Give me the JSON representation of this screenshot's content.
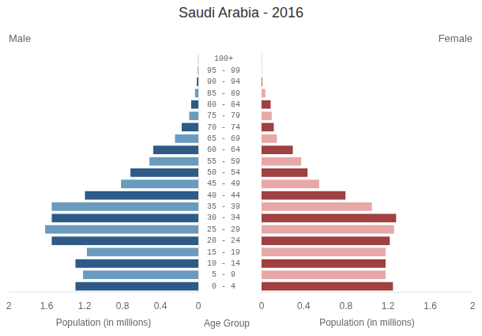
{
  "chart_data": {
    "type": "bar",
    "orientation": "horizontal",
    "title": "Saudi Arabia - 2016",
    "xlabel": "Population (in millions)",
    "ylabel": "Age Group",
    "categories": [
      "0 - 4",
      "5 - 9",
      "10 - 14",
      "15 - 19",
      "20 - 24",
      "25 - 29",
      "30 - 34",
      "35 - 39",
      "40 - 44",
      "45 - 49",
      "50 - 54",
      "55 - 59",
      "60 - 64",
      "65 - 69",
      "70 - 74",
      "75 - 79",
      "80 - 84",
      "85 - 89",
      "90 - 94",
      "95 - 99",
      "100+"
    ],
    "series": [
      {
        "name": "Male",
        "values": [
          1.3,
          1.22,
          1.3,
          1.18,
          1.55,
          1.62,
          1.55,
          1.55,
          1.2,
          0.82,
          0.72,
          0.52,
          0.48,
          0.25,
          0.18,
          0.1,
          0.08,
          0.04,
          0.02,
          0.01,
          0.005
        ],
        "colors": [
          "#2e5a87",
          "#6a9bbf",
          "#2e5a87",
          "#6a9bbf",
          "#2e5a87",
          "#6a9bbf",
          "#2e5a87",
          "#6a9bbf",
          "#2e5a87",
          "#6a9bbf",
          "#2e5a87",
          "#6a9bbf",
          "#2e5a87",
          "#6a9bbf",
          "#2e5a87",
          "#6a9bbf",
          "#2e5a87",
          "#6a9bbf",
          "#2e5a87",
          "#6a9bbf",
          "#2e5a87"
        ]
      },
      {
        "name": "Female",
        "values": [
          1.25,
          1.18,
          1.18,
          1.18,
          1.22,
          1.26,
          1.28,
          1.05,
          0.8,
          0.55,
          0.44,
          0.38,
          0.3,
          0.15,
          0.12,
          0.1,
          0.09,
          0.04,
          0.01,
          0.005,
          0.003
        ],
        "colors": [
          "#a04040",
          "#e8a8a8",
          "#a04040",
          "#e8a8a8",
          "#a04040",
          "#e8a8a8",
          "#a04040",
          "#e8a8a8",
          "#a04040",
          "#e8a8a8",
          "#a04040",
          "#e8a8a8",
          "#a04040",
          "#e8a8a8",
          "#a04040",
          "#e8a8a8",
          "#a04040",
          "#e8a8a8",
          "#a04040",
          "#e8a8a8",
          "#a04040"
        ]
      }
    ],
    "xlim": [
      0,
      2.0
    ],
    "xticks": [
      0,
      0.4,
      0.8,
      1.2,
      1.6,
      2
    ],
    "grid": false
  }
}
